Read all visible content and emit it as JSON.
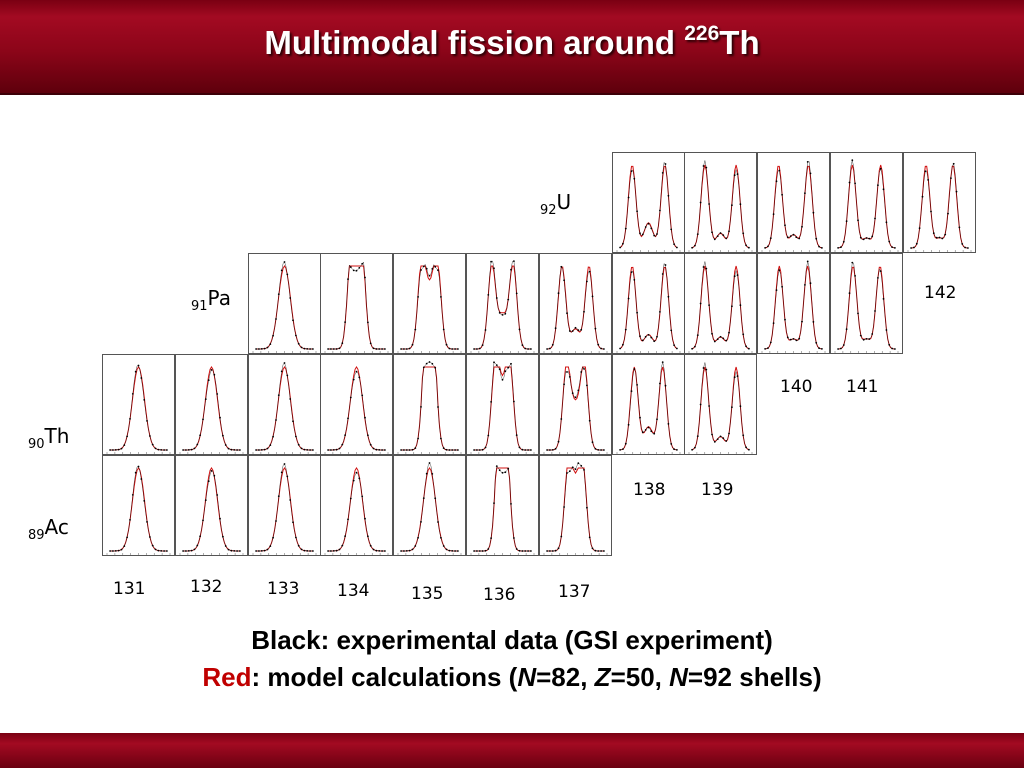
{
  "slide": {
    "title_main": "Multimodal fission around ",
    "title_mass": "226",
    "title_element": "Th"
  },
  "elements": [
    {
      "z": "92",
      "symbol": "U"
    },
    {
      "z": "91",
      "symbol": "Pa"
    },
    {
      "z": "90",
      "symbol": "Th"
    },
    {
      "z": "89",
      "symbol": "Ac"
    }
  ],
  "neutron_labels": [
    "131",
    "132",
    "133",
    "134",
    "135",
    "136",
    "137",
    "138",
    "139",
    "140",
    "141",
    "142"
  ],
  "caption": {
    "line1": "Black: experimental data (GSI experiment)",
    "line2_red": "Red",
    "line2_a": ": model calculations (",
    "n1_sym": "N",
    "n1_val": "=82, ",
    "z_sym": "Z",
    "z_val": "=50, ",
    "n2_sym": "N",
    "n2_val": "=92 shells)"
  },
  "colors": {
    "title_bar": "#8c0519",
    "model_curve": "#d01010",
    "experiment": "#000000",
    "highlight": "#c00000"
  },
  "chart_data": {
    "type": "line",
    "description_series": [
      {
        "name": "experimental data",
        "color": "#000000"
      },
      {
        "name": "model calculations",
        "color": "#d01010"
      }
    ],
    "panels": [
      {
        "row": 0,
        "element": "U",
        "N": [
          138,
          139,
          140,
          141,
          142
        ],
        "shape_sep": [
          0.46,
          0.44,
          0.42,
          0.4,
          0.38
        ],
        "valley": [
          0.38,
          0.22,
          0.2,
          0.15,
          0.15
        ]
      },
      {
        "row": 1,
        "element": "Pa",
        "N": [
          133,
          134,
          135,
          136,
          137,
          138,
          139,
          140,
          141
        ],
        "shape_sep": [
          0.0,
          0.15,
          0.22,
          0.3,
          0.38,
          0.46,
          0.44,
          0.4,
          0.38
        ],
        "valley": [
          1.0,
          0.85,
          0.75,
          0.5,
          0.3,
          0.22,
          0.18,
          0.15,
          0.15
        ]
      },
      {
        "row": 2,
        "element": "Th",
        "N": [
          131,
          132,
          133,
          134,
          135,
          136,
          137,
          138,
          139
        ],
        "shape_sep": [
          0.0,
          0.0,
          0.0,
          0.0,
          0.1,
          0.2,
          0.25,
          0.4,
          0.44
        ],
        "valley": [
          1.0,
          1.0,
          1.0,
          1.0,
          0.9,
          0.7,
          0.6,
          0.35,
          0.2
        ]
      },
      {
        "row": 3,
        "element": "Ac",
        "N": [
          131,
          132,
          133,
          134,
          135,
          136,
          137
        ],
        "shape_sep": [
          0.0,
          0.0,
          0.0,
          0.0,
          0.0,
          0.1,
          0.2
        ],
        "valley": [
          1.0,
          1.0,
          1.0,
          1.0,
          1.0,
          0.9,
          0.75
        ]
      }
    ]
  }
}
